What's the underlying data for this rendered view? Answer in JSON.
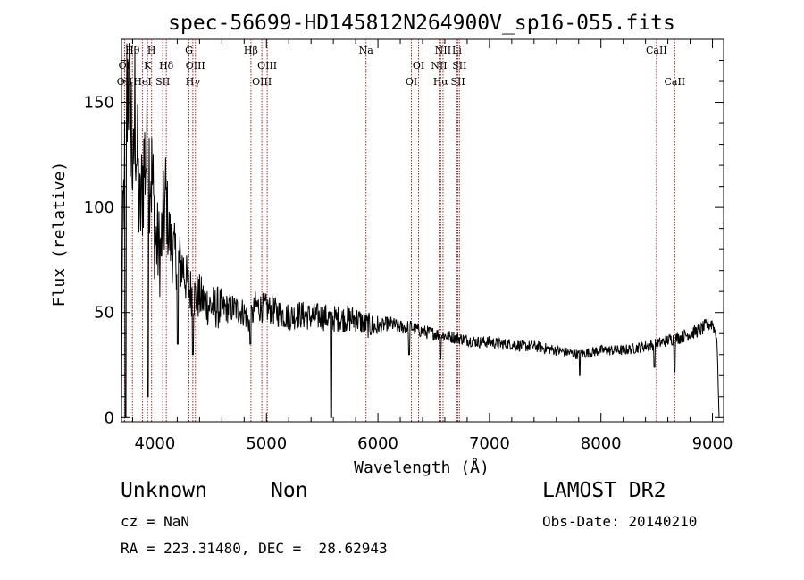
{
  "chart_data": {
    "type": "line",
    "title": "spec-56699-HD145812N264900V_sp16-055.fits",
    "xlabel": "Wavelength (Å)",
    "ylabel": "Flux (relative)",
    "xlim": [
      3700,
      9100
    ],
    "ylim": [
      -2,
      180
    ],
    "xticks": [
      4000,
      5000,
      6000,
      7000,
      8000,
      9000
    ],
    "yticks": [
      0,
      50,
      100,
      150
    ],
    "xtick_labels": [
      "4000",
      "5000",
      "6000",
      "7000",
      "8000",
      "9000"
    ],
    "ytick_labels": [
      "0",
      "50",
      "100",
      "150"
    ],
    "series": [
      {
        "name": "flux",
        "color": "#000000",
        "anchors": [
          [
            3700,
            0
          ],
          [
            3705,
            60
          ],
          [
            3715,
            95
          ],
          [
            3730,
            120
          ],
          [
            3745,
            150
          ],
          [
            3760,
            168
          ],
          [
            3775,
            150
          ],
          [
            3790,
            140
          ],
          [
            3805,
            105
          ],
          [
            3820,
            150
          ],
          [
            3835,
            130
          ],
          [
            3850,
            110
          ],
          [
            3865,
            95
          ],
          [
            3880,
            105
          ],
          [
            3900,
            120
          ],
          [
            3920,
            125
          ],
          [
            3940,
            123
          ],
          [
            3960,
            120
          ],
          [
            3980,
            110
          ],
          [
            4000,
            85
          ],
          [
            4050,
            78
          ],
          [
            4100,
            105
          ],
          [
            4120,
            90
          ],
          [
            4150,
            80
          ],
          [
            4200,
            75
          ],
          [
            4250,
            72
          ],
          [
            4300,
            62
          ],
          [
            4350,
            58
          ],
          [
            4400,
            57
          ],
          [
            4450,
            55
          ],
          [
            4500,
            53
          ],
          [
            4600,
            52
          ],
          [
            4700,
            52
          ],
          [
            4800,
            50
          ],
          [
            4850,
            45
          ],
          [
            4900,
            53
          ],
          [
            5000,
            52
          ],
          [
            5100,
            50
          ],
          [
            5200,
            48
          ],
          [
            5300,
            49
          ],
          [
            5400,
            48
          ],
          [
            5500,
            48
          ],
          [
            5600,
            47
          ],
          [
            5700,
            47
          ],
          [
            5800,
            47
          ],
          [
            5900,
            44
          ],
          [
            6000,
            43
          ],
          [
            6100,
            45
          ],
          [
            6200,
            43
          ],
          [
            6300,
            43
          ],
          [
            6400,
            41
          ],
          [
            6500,
            40
          ],
          [
            6600,
            39
          ],
          [
            6700,
            38
          ],
          [
            6800,
            37
          ],
          [
            6900,
            36
          ],
          [
            7000,
            36
          ],
          [
            7100,
            35
          ],
          [
            7200,
            35
          ],
          [
            7300,
            34
          ],
          [
            7400,
            34
          ],
          [
            7500,
            33
          ],
          [
            7600,
            32
          ],
          [
            7700,
            31
          ],
          [
            7800,
            30
          ],
          [
            7900,
            31
          ],
          [
            8000,
            32
          ],
          [
            8100,
            32
          ],
          [
            8200,
            32
          ],
          [
            8300,
            33
          ],
          [
            8400,
            34
          ],
          [
            8500,
            35
          ],
          [
            8600,
            37
          ],
          [
            8700,
            38
          ],
          [
            8800,
            40
          ],
          [
            8900,
            42
          ],
          [
            8950,
            44
          ],
          [
            9000,
            45
          ],
          [
            9040,
            38
          ],
          [
            9060,
            0
          ]
        ],
        "dips": [
          [
            3735,
            0
          ],
          [
            3935,
            10
          ],
          [
            4205,
            35
          ],
          [
            4340,
            30
          ],
          [
            4855,
            35
          ],
          [
            5580,
            0
          ],
          [
            6280,
            30
          ],
          [
            6560,
            28
          ],
          [
            7810,
            20
          ],
          [
            8480,
            24
          ],
          [
            8660,
            22
          ]
        ]
      }
    ],
    "line_marks": [
      {
        "label": "Hθ",
        "x": 3798,
        "row": 0
      },
      {
        "label": "OI",
        "x": 3727,
        "row": 1
      },
      {
        "label": "OII",
        "x": 3729,
        "row": 2
      },
      {
        "label": "H",
        "x": 3970,
        "row": 0
      },
      {
        "label": "K",
        "x": 3934,
        "row": 1
      },
      {
        "label": "HeI",
        "x": 3889,
        "row": 2
      },
      {
        "label": "SII",
        "x": 4070,
        "row": 2
      },
      {
        "label": "Hδ",
        "x": 4102,
        "row": 1
      },
      {
        "label": "G",
        "x": 4305,
        "row": 0
      },
      {
        "label": "OIII",
        "x": 4363,
        "row": 1
      },
      {
        "label": "Hγ",
        "x": 4340,
        "row": 2
      },
      {
        "label": "Hβ",
        "x": 4861,
        "row": 0
      },
      {
        "label": "OIII",
        "x": 5007,
        "row": 1
      },
      {
        "label": "OIII",
        "x": 4959,
        "row": 2
      },
      {
        "label": "Na",
        "x": 5893,
        "row": 0
      },
      {
        "label": "OI",
        "x": 6364,
        "row": 1
      },
      {
        "label": "OI",
        "x": 6300,
        "row": 2
      },
      {
        "label": "NII",
        "x": 6584,
        "row": 0
      },
      {
        "label": "Li",
        "x": 6708,
        "row": 0
      },
      {
        "label": "NII",
        "x": 6548,
        "row": 1
      },
      {
        "label": "SII",
        "x": 6731,
        "row": 1
      },
      {
        "label": "Hα",
        "x": 6563,
        "row": 2
      },
      {
        "label": "SII",
        "x": 6717,
        "row": 2
      },
      {
        "label": "CaII",
        "x": 8498,
        "row": 0
      },
      {
        "label": "CaII",
        "x": 8662,
        "row": 2
      }
    ]
  },
  "info": {
    "object_name": "Unknown",
    "object_class": "Non",
    "survey": "LAMOST DR2",
    "cz": "cz = NaN",
    "obs_date": "Obs-Date: 20140210",
    "coords": "RA = 223.31480, DEC =  28.62943"
  }
}
